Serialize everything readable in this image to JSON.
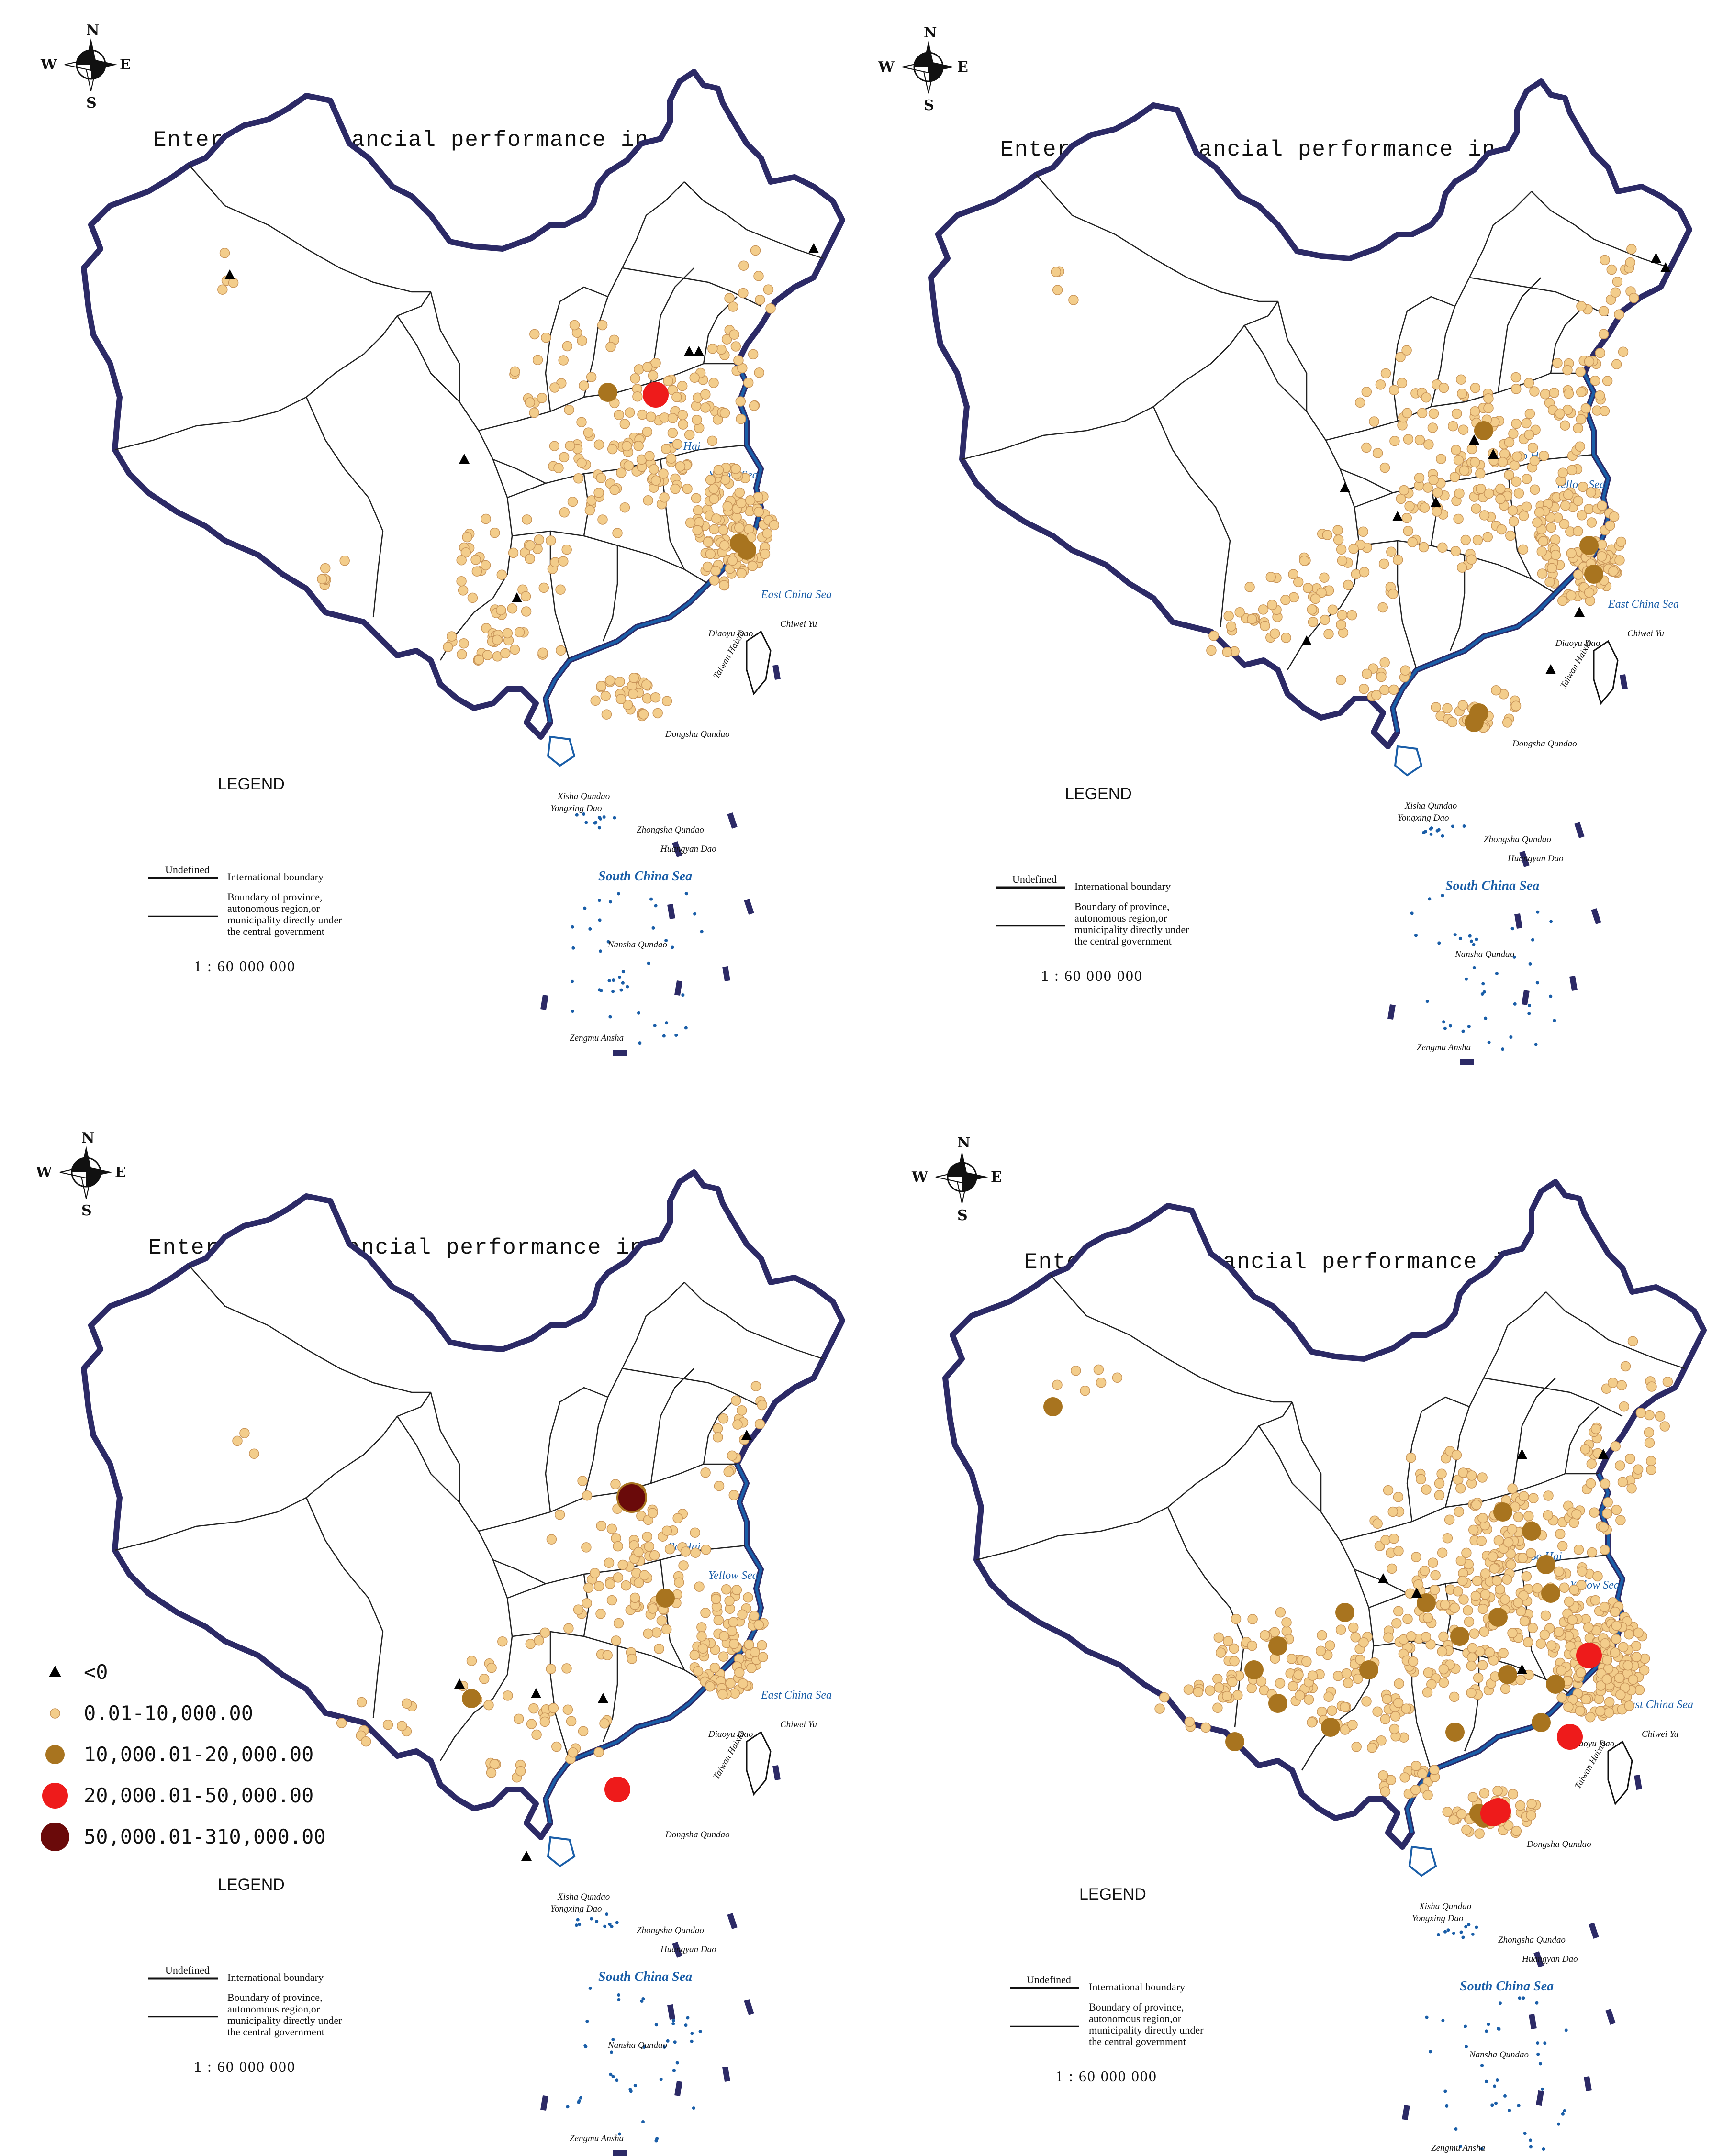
{
  "panels": [
    {
      "id": "p1",
      "title": "Enterprise financial performance in 2009",
      "legend_heading": "LEGEND",
      "unidentified_label": "Undefined",
      "intl_boundary_label": "International boundary",
      "prov_boundary_lines": [
        "Boundary of province,",
        "autonomous region,or",
        "municipality directly under",
        "the central government"
      ],
      "scale": "1 : 60 000 000",
      "compass": {
        "n": "N",
        "s": "S",
        "e": "E",
        "w": "W"
      },
      "labels": {
        "bohai": "Bo Hai",
        "yellow": "Yellow Sea",
        "eastchina": "East China Sea",
        "southchina": "South  China  Sea",
        "taiwan": "Taiwan Haixia",
        "diaoyu": "Diaoyu Dao",
        "chiwei": "Chiwei Yu",
        "dongsha": "Dongsha Qundao",
        "xisha": "Xisha Qundao",
        "yongxing": "Yongxing Dao",
        "zhongsha": "Zhongsha Qundao",
        "huangyan": "Huangyan Dao",
        "nansha": "Nansha Qundao",
        "zengmu": "Zengmu Ansha"
      }
    },
    {
      "id": "p2",
      "title": "Enterprise financial performance in 2009",
      "legend_heading": "LEGEND",
      "unidentified_label": "Undefined",
      "intl_boundary_label": "International boundary",
      "prov_boundary_lines": [
        "Boundary of province,",
        "autonomous region,or",
        "municipality directly under",
        "the central government"
      ],
      "scale": "1 : 60 000 000",
      "compass": {
        "n": "N",
        "s": "S",
        "e": "E",
        "w": "W"
      },
      "labels": {
        "bohai": "Bo Hai",
        "yellow": "Yellow Sea",
        "eastchina": "East China Sea",
        "southchina": "South  China  Sea",
        "taiwan": "Taiwan Haixia",
        "diaoyu": "Diaoyu Dao",
        "chiwei": "Chiwei Yu",
        "dongsha": "Dongsha Qundao",
        "xisha": "Xisha Qundao",
        "yongxing": "Yongxing Dao",
        "zhongsha": "Zhongsha Qundao",
        "huangyan": "Huangyan Dao",
        "nansha": "Nansha Qundao",
        "zengmu": "Zengmu Ansha"
      }
    },
    {
      "id": "p3",
      "title": "Enterprise financial performance in 2020",
      "legend_heading": "LEGEND",
      "unidentified_label": "Undefined",
      "intl_boundary_label": "International boundary",
      "prov_boundary_lines": [
        "Boundary of province,",
        "autonomous region,or",
        "municipality directly under",
        "the central government"
      ],
      "scale": "1 : 60 000 000",
      "compass": {
        "n": "N",
        "s": "S",
        "e": "E",
        "w": "W"
      },
      "labels": {
        "bohai": "Bo Hai",
        "yellow": "Yellow Sea",
        "eastchina": "East China Sea",
        "southchina": "South  China  Sea",
        "taiwan": "Taiwan Haixia",
        "diaoyu": "Diaoyu Dao",
        "chiwei": "Chiwei Yu",
        "dongsha": "Dongsha Qundao",
        "xisha": "Xisha Qundao",
        "yongxing": "Yongxing Dao",
        "zhongsha": "Zhongsha Qundao",
        "huangyan": "Huangyan Dao",
        "nansha": "Nansha Qundao",
        "zengmu": "Zengmu Ansha"
      }
    },
    {
      "id": "p4",
      "title": "Enterprise financial performance in 2020",
      "legend_heading": "LEGEND",
      "unidentified_label": "Undefined",
      "intl_boundary_label": "International boundary",
      "prov_boundary_lines": [
        "Boundary of province,",
        "autonomous region,or",
        "municipality directly under",
        "the central government"
      ],
      "scale": "1 : 60 000 000",
      "compass": {
        "n": "N",
        "s": "S",
        "e": "E",
        "w": "W"
      },
      "labels": {
        "bohai": "Bo Hai",
        "yellow": "Yellow Sea",
        "eastchina": "East China Sea",
        "southchina": "South  China  Sea",
        "taiwan": "Taiwan Haixia",
        "diaoyu": "Diaoyu Dao",
        "chiwei": "Chiwei Yu",
        "dongsha": "Dongsha Qundao",
        "xisha": "Xisha Qundao",
        "yongxing": "Yongxing Dao",
        "zhongsha": "Zhongsha Qundao",
        "huangyan": "Huangyan Dao",
        "nansha": "Nansha Qundao",
        "zengmu": "Zengmu Ansha"
      }
    }
  ],
  "class_legend": {
    "items": [
      {
        "label": "<0",
        "symbol": "triangle",
        "color": "#000000"
      },
      {
        "label": "0.01-10,000.00",
        "symbol": "circle",
        "color": "#f3cd8b"
      },
      {
        "label": "10,000.01-20,000.00",
        "symbol": "circle",
        "color": "#a8741f"
      },
      {
        "label": "20,000.01-50,000.00",
        "symbol": "circle",
        "color": "#ee1b1b"
      },
      {
        "label": "50,000.01-310,000.00",
        "symbol": "circle",
        "color": "#6a0a0a"
      }
    ]
  },
  "colors": {
    "national_boundary": "#2c2a66",
    "province_line": "#222222",
    "water": "#1a5ea8",
    "light_dot": "#f3cd8b",
    "light_dot_stroke": "#c9955a"
  }
}
